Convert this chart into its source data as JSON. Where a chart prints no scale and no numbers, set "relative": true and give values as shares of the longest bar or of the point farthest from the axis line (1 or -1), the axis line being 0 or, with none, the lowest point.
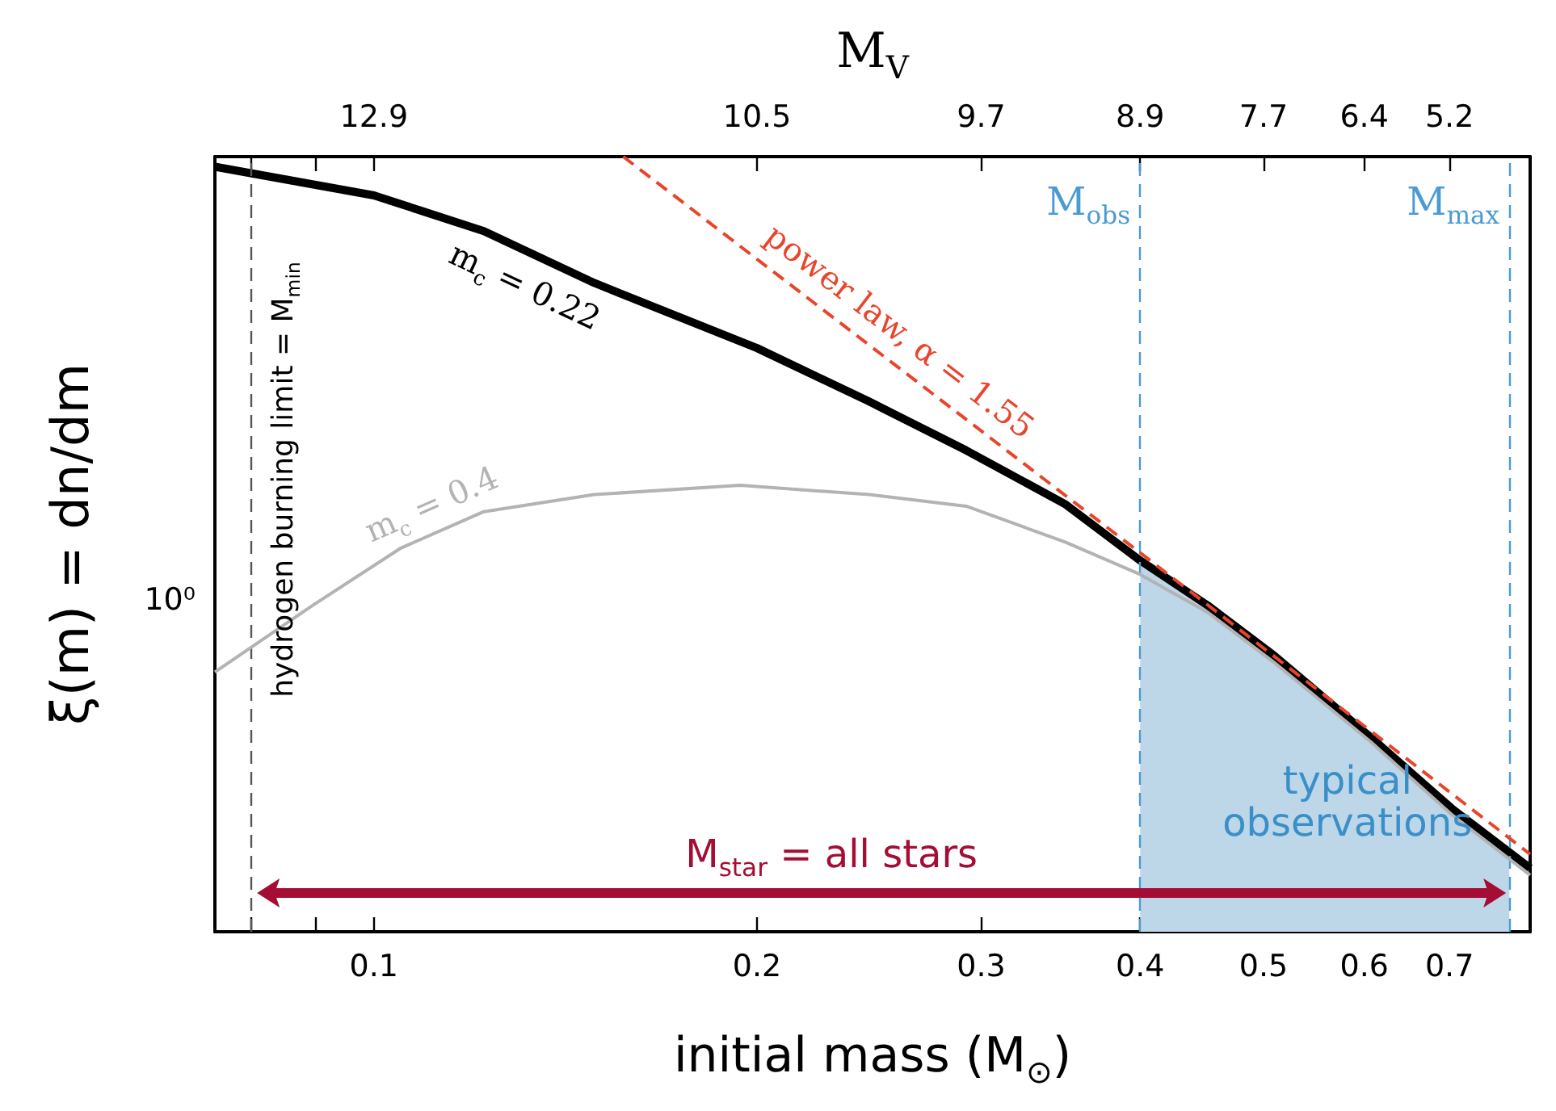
{
  "chart_data": {
    "type": "line",
    "relative": true,
    "xlabel": "initial mass (M$_{⊙}$)",
    "ylabel": "ξ(m) = dn/dm",
    "x2label": "M$_{V}$",
    "series": [
      {
        "type": "area",
        "color": "#bdd7e9",
        "x": [
          0.4,
          0.452,
          0.51,
          0.607,
          0.703,
          0.78
        ],
        "values": [
          0.479,
          0.421,
          0.356,
          0.251,
          0.159,
          0.109
        ]
      },
      {
        "name": "m$_{c}$ = 0.22",
        "color": "#000000",
        "x": [
          0.075,
          0.1,
          0.122,
          0.149,
          0.2,
          0.245,
          0.292,
          0.349,
          0.4,
          0.452,
          0.51,
          0.607,
          0.703,
          0.81
        ],
        "values": [
          0.987,
          0.95,
          0.904,
          0.837,
          0.753,
          0.684,
          0.621,
          0.552,
          0.479,
          0.421,
          0.356,
          0.251,
          0.159,
          0.082
        ]
      },
      {
        "name": "m$_{c}$ = 0.4",
        "color": "#b3b3b3",
        "x": [
          0.075,
          0.0895,
          0.105,
          0.122,
          0.149,
          0.194,
          0.245,
          0.292,
          0.349,
          0.4,
          0.452,
          0.51,
          0.607,
          0.703,
          0.81
        ],
        "values": [
          0.335,
          0.421,
          0.495,
          0.542,
          0.564,
          0.576,
          0.564,
          0.549,
          0.503,
          0.461,
          0.412,
          0.347,
          0.245,
          0.151,
          0.073
        ]
      },
      {
        "name": "power law, α = 1.55",
        "color": "#e8452c",
        "line_style": "dashed",
        "x": [
          0.157,
          0.4,
          0.81
        ],
        "values": [
          1,
          0.489,
          0.1
        ]
      }
    ],
    "log": "x",
    "xlim": [
      0.075,
      0.81
    ],
    "xticks": [
      {
        "value": 0.08,
        "label": null
      },
      {
        "value": 0.09,
        "label": null
      },
      0.1,
      0.2,
      0.3,
      0.4,
      0.5,
      0.6,
      0.7
    ],
    "ref_lines": [
      {
        "axis": "x",
        "value": 0.08,
        "label": "hydrogen burning limit = M$_{min}$",
        "color": "#555555",
        "line_style": "dashed"
      },
      {
        "axis": "x",
        "value": 0.4,
        "label": "M$_{obs}$",
        "color": "#4a9bd0",
        "line_style": "dashed"
      },
      {
        "axis": "x",
        "value": 0.78,
        "label": "M$_{max}$",
        "color": "#4a9bd0",
        "line_style": "dashed"
      }
    ],
    "annotations": [
      "M$_{star}$ = all stars",
      "typical observations",
      "10⁰",
      "12.9",
      "10.5",
      "9.7",
      "8.9",
      "7.7",
      "6.4",
      "5.2"
    ],
    "grid": false,
    "marker": "none",
    "line_style": "solid"
  }
}
